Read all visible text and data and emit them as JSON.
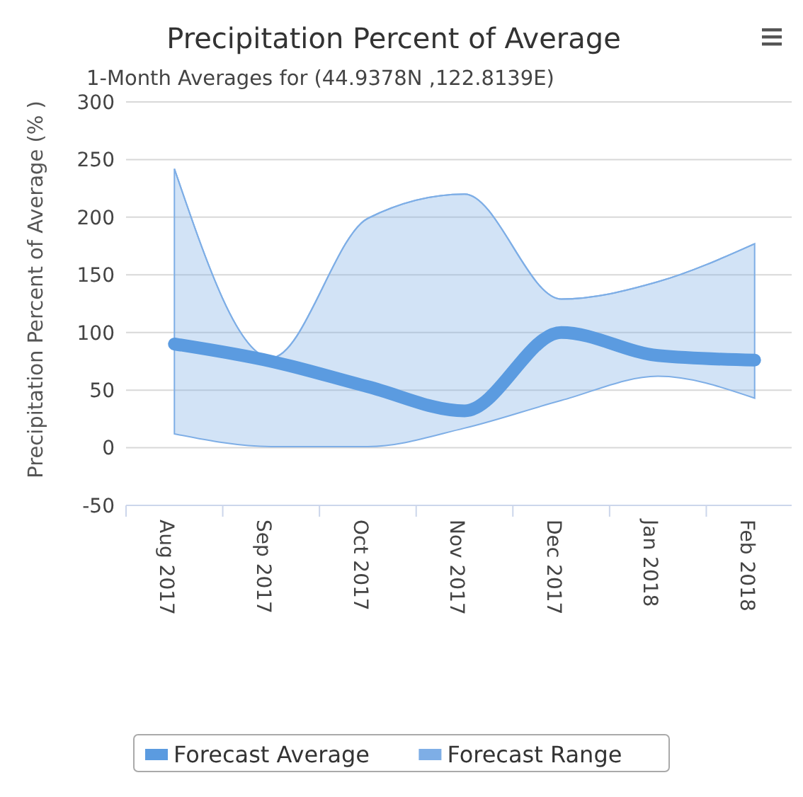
{
  "chart_data": {
    "type": "line",
    "title": "Precipitation Percent of Average",
    "subtitle": "1-Month Averages for (44.9378N ,122.8139E)",
    "ylabel": "Precipitation Percent of Average (% )",
    "categories": [
      "Aug 2017",
      "Sep 2017",
      "Oct 2017",
      "Nov 2017",
      "Dec 2017",
      "Jan 2018",
      "Feb 2018"
    ],
    "series": [
      {
        "name": "Forecast Average",
        "color": "#5b9be0",
        "values": [
          90,
          75,
          53,
          32,
          100,
          80,
          76
        ]
      },
      {
        "name": "Forecast Range",
        "type": "line",
        "color": "#7eaee6",
        "values": [
          242,
          78,
          199,
          220,
          129,
          144,
          177
        ],
        "upper": [
          242,
          78,
          199,
          220,
          129,
          144,
          177
        ],
        "lower": [
          12,
          1,
          1,
          17,
          41,
          62,
          43
        ]
      }
    ],
    "ylim": [
      -50,
      300
    ],
    "yticks": [
      -50,
      0,
      50,
      100,
      150,
      200,
      250,
      300
    ],
    "grid": "y",
    "legend": "bottom"
  }
}
